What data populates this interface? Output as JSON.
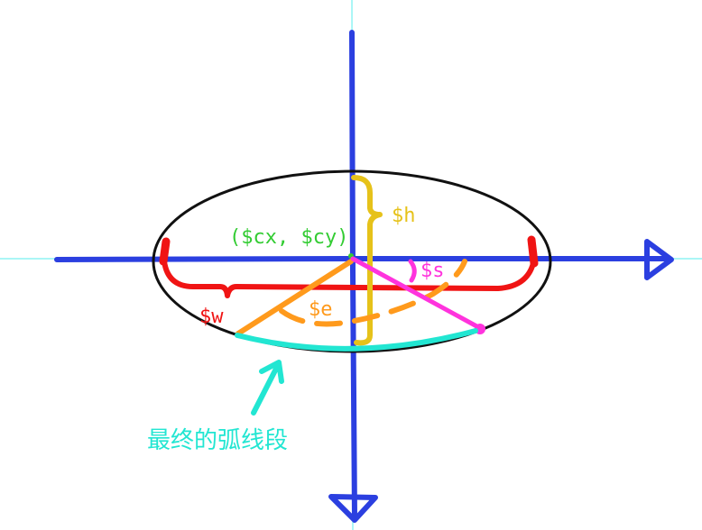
{
  "labels": {
    "height": "$h",
    "center": "($cx, $cy)",
    "start": "$s",
    "width": "$w",
    "end": "$e",
    "final_arc": "最终的弧线段"
  },
  "colors": {
    "background": "#ffffff",
    "guide": "#8ff4f4",
    "axis": "#2b3fe0",
    "ellipse": "#111111",
    "width": "#f01414",
    "height": "#e6c21a",
    "center": "#33cc33",
    "end": "#ff9a1c",
    "start": "#ff33dd",
    "arc": "#22e6d2"
  }
}
